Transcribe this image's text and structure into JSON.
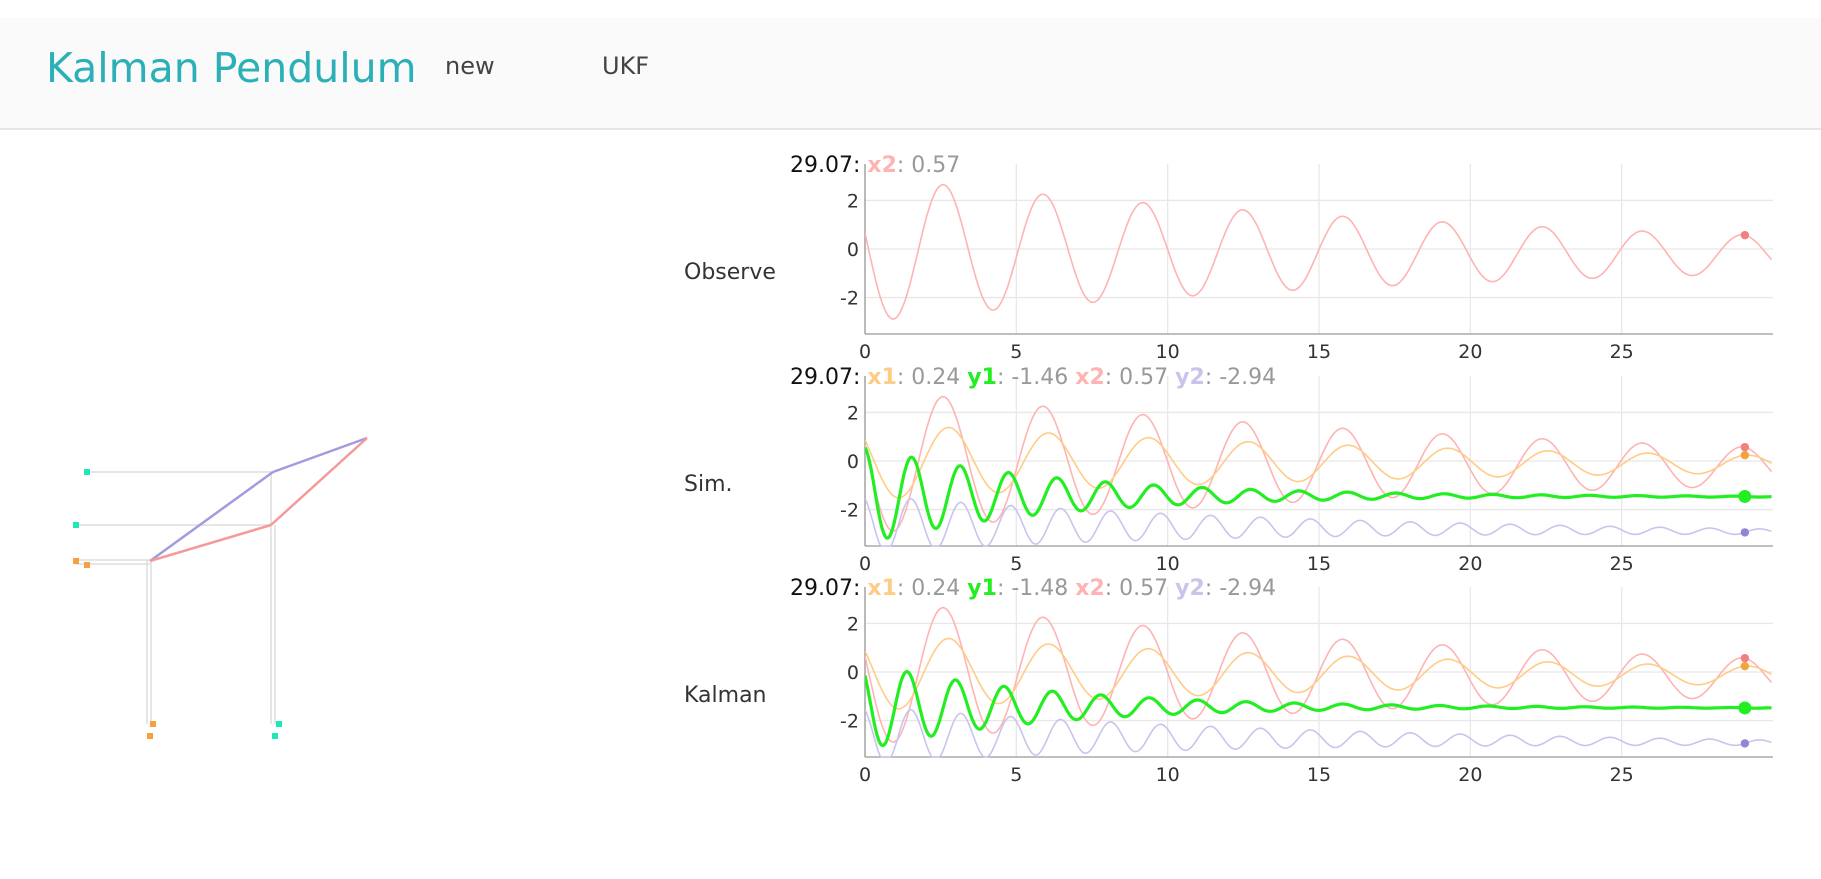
{
  "header": {
    "title": "Kalman Pendulum",
    "nav": [
      {
        "label": "new"
      },
      {
        "label": "UKF"
      }
    ]
  },
  "colors": {
    "brand": "#2bb0b8",
    "x1": "#ffcc88",
    "y1": "#22ee22",
    "x2": "#ffb3b3",
    "y2": "#c9c4ec",
    "x2_dot": "#f28080",
    "x1_dot": "#f5a13c",
    "y2_dot": "#8f87d6",
    "mass_orange": "#f5a13c",
    "mass_teal": "#1de9b6",
    "link_blue": "#a29be0",
    "link_red": "#f59a9a"
  },
  "chart_data": [
    {
      "type": "line",
      "title": "Observe",
      "time": "29.07",
      "readout": [
        {
          "name": "x2",
          "value": "0.57",
          "color": "#ffb3b3"
        }
      ],
      "x_ticks": [
        "0",
        "5",
        "10",
        "15",
        "20",
        "25"
      ],
      "y_ticks": [
        "2",
        "0",
        "-2"
      ],
      "xlim": [
        0,
        30
      ],
      "ylim": [
        -3.5,
        3.5
      ],
      "grid": true,
      "series": [
        {
          "name": "x2",
          "color": "#ffb3b3",
          "kind": "osc",
          "amp": 3.0,
          "decay": 0.045,
          "period": 3.3,
          "phase": 1.35,
          "offset": 0.0,
          "end": 0.57,
          "end_dot": "#f28080"
        }
      ]
    },
    {
      "type": "line",
      "title": "Sim.",
      "time": "29.07",
      "readout": [
        {
          "name": "x1",
          "value": "0.24",
          "color": "#ffcc88"
        },
        {
          "name": "y1",
          "value": "-1.46",
          "color": "#22ee22"
        },
        {
          "name": "x2",
          "value": "0.57",
          "color": "#ffb3b3"
        },
        {
          "name": "y2",
          "value": "-2.94",
          "color": "#c9c4ec"
        }
      ],
      "x_ticks": [
        "0",
        "5",
        "10",
        "15",
        "20",
        "25"
      ],
      "y_ticks": [
        "2",
        "0",
        "-2"
      ],
      "xlim": [
        0,
        30
      ],
      "ylim": [
        -3.5,
        3.5
      ],
      "grid": true,
      "series": [
        {
          "name": "x2",
          "color": "#ffb3b3",
          "kind": "osc",
          "amp": 3.0,
          "decay": 0.045,
          "period": 3.3,
          "phase": 1.35,
          "offset": 0.0,
          "end": 0.57,
          "end_dot": "#f28080"
        },
        {
          "name": "x1",
          "color": "#ffcc88",
          "kind": "osc",
          "amp": 1.6,
          "decay": 0.05,
          "period": 3.3,
          "phase": 1.0,
          "offset": 0.0,
          "end": 0.24,
          "end_dot": "#f5a13c"
        },
        {
          "name": "y2",
          "color": "#c9c4ec",
          "kind": "osc",
          "amp": 1.2,
          "decay": 0.08,
          "period": 1.65,
          "phase": 0.5,
          "offset": -2.6,
          "end": -2.94,
          "end_dot": "#8f87d6"
        },
        {
          "name": "y1",
          "color": "#22ee22",
          "kind": "osc",
          "amp": 2.0,
          "decay": 0.16,
          "period": 1.6,
          "phase": 0.2,
          "offset": -1.4,
          "end": -1.46,
          "end_dot": "#22ee22",
          "bold": true
        }
      ]
    },
    {
      "type": "line",
      "title": "Kalman",
      "time": "29.07",
      "readout": [
        {
          "name": "x1",
          "value": "0.24",
          "color": "#ffcc88"
        },
        {
          "name": "y1",
          "value": "-1.48",
          "color": "#22ee22"
        },
        {
          "name": "x2",
          "value": "0.57",
          "color": "#ffb3b3"
        },
        {
          "name": "y2",
          "value": "-2.94",
          "color": "#c9c4ec"
        }
      ],
      "x_ticks": [
        "0",
        "5",
        "10",
        "15",
        "20",
        "25"
      ],
      "y_ticks": [
        "2",
        "0",
        "-2"
      ],
      "xlim": [
        0,
        30
      ],
      "ylim": [
        -3.5,
        3.5
      ],
      "grid": true,
      "series": [
        {
          "name": "x2",
          "color": "#ffb3b3",
          "kind": "osc",
          "amp": 3.0,
          "decay": 0.045,
          "period": 3.3,
          "phase": 1.35,
          "offset": 0.0,
          "end": 0.57,
          "end_dot": "#f28080"
        },
        {
          "name": "x1",
          "color": "#ffcc88",
          "kind": "osc",
          "amp": 1.6,
          "decay": 0.05,
          "period": 3.3,
          "phase": 1.0,
          "offset": 0.0,
          "end": 0.24,
          "end_dot": "#f5a13c"
        },
        {
          "name": "y2",
          "color": "#c9c4ec",
          "kind": "osc",
          "amp": 1.2,
          "decay": 0.08,
          "period": 1.65,
          "phase": 0.5,
          "offset": -2.6,
          "end": -2.94,
          "end_dot": "#8f87d6"
        },
        {
          "name": "y1",
          "color": "#22ee22",
          "kind": "osc",
          "amp": 1.8,
          "decay": 0.17,
          "period": 1.6,
          "phase": 0.8,
          "offset": -1.4,
          "end": -1.48,
          "end_dot": "#22ee22",
          "bold": true
        }
      ]
    }
  ]
}
